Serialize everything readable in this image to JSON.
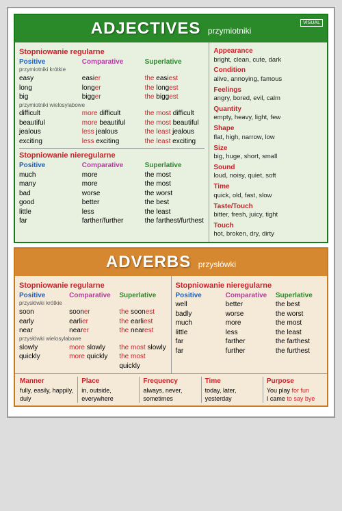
{
  "adjectives": {
    "title": "ADJECTIVES",
    "subtitle": "przymiotniki",
    "brand": "VISUAL",
    "regular_heading": "Stopniowanie regularne",
    "irregular_heading": "Stopniowanie nieregularne",
    "cols": {
      "positive": "Positive",
      "comparative": "Comparative",
      "superlative": "Superlative"
    },
    "sub_short": "przymiotniki krótkie",
    "sub_long": "przymiotniki wielosylabowe",
    "short_rows": [
      {
        "p": "easy",
        "c_pre": "easi",
        "c_suf": "er",
        "s_pre": "the ",
        "s_mid": "easi",
        "s_suf": "est"
      },
      {
        "p": "long",
        "c_pre": "long",
        "c_suf": "er",
        "s_pre": "the ",
        "s_mid": "long",
        "s_suf": "est"
      },
      {
        "p": "big",
        "c_pre": "bigg",
        "c_suf": "er",
        "s_pre": "the ",
        "s_mid": "bigg",
        "s_suf": "est"
      }
    ],
    "long_rows": [
      {
        "p": "difficult",
        "c_w": "more",
        "c_rest": " difficult",
        "s_w": "the most",
        "s_rest": " difficult"
      },
      {
        "p": "beautiful",
        "c_w": "more",
        "c_rest": " beautiful",
        "s_w": "the most",
        "s_rest": " beautiful"
      },
      {
        "p": "jealous",
        "c_w": "less",
        "c_rest": " jealous",
        "s_w": "the least",
        "s_rest": " jealous"
      },
      {
        "p": "exciting",
        "c_w": "less",
        "c_rest": " exciting",
        "s_w": "the least",
        "s_rest": " exciting"
      }
    ],
    "irregular_rows": [
      {
        "p": "much",
        "c": "more",
        "s": "the most"
      },
      {
        "p": "many",
        "c": "more",
        "s": "the most"
      },
      {
        "p": "bad",
        "c": "worse",
        "s": "the worst"
      },
      {
        "p": "good",
        "c": "better",
        "s": "the best"
      },
      {
        "p": "little",
        "c": "less",
        "s": "the least"
      },
      {
        "p": "far",
        "c": "farther/further",
        "s": "the farthest/furthest"
      }
    ],
    "categories": [
      {
        "name": "Appearance",
        "words": "bright, clean, cute, dark"
      },
      {
        "name": "Condition",
        "words": "alive, annoying, famous"
      },
      {
        "name": "Feelings",
        "words": "angry, bored, evil, calm"
      },
      {
        "name": "Quantity",
        "words": "empty, heavy, light, few"
      },
      {
        "name": "Shape",
        "words": "flat, high, narrow, low"
      },
      {
        "name": "Size",
        "words": "big, huge, short, small"
      },
      {
        "name": "Sound",
        "words": "loud, noisy, quiet, soft"
      },
      {
        "name": "Time",
        "words": "quick, old, fast, slow"
      },
      {
        "name": "Taste/Touch",
        "words": "bitter, fresh, juicy, tight"
      },
      {
        "name": "Touch",
        "words": "hot, broken, dry, dirty"
      }
    ]
  },
  "adverbs": {
    "title": "ADVERBS",
    "subtitle": "przysłówki",
    "regular_heading": "Stopniowanie regularne",
    "irregular_heading": "Stopniowanie nieregularne",
    "cols": {
      "positive": "Positive",
      "comparative": "Comparative",
      "superlative": "Superlative"
    },
    "sub_short": "przysłówki krótkie",
    "sub_long": "przysłówki wielosylabowe",
    "reg_short": [
      {
        "p": "soon",
        "c_pre": "soon",
        "c_suf": "er",
        "s_pre": "the ",
        "s_mid": "soon",
        "s_suf": "est"
      },
      {
        "p": "early",
        "c_pre": "earli",
        "c_suf": "er",
        "s_pre": "the ",
        "s_mid": "earli",
        "s_suf": "est"
      },
      {
        "p": "near",
        "c_pre": "near",
        "c_suf": "er",
        "s_pre": "the ",
        "s_mid": "near",
        "s_suf": "est"
      }
    ],
    "reg_long": [
      {
        "p": "slowly",
        "c_w": "more",
        "c_rest": " slowly",
        "s_w": "the most",
        "s_rest": " slowly"
      },
      {
        "p": "quickly",
        "c_w": "more",
        "c_rest": " quickly",
        "s_w": "the most",
        "s_rest": " quickly"
      }
    ],
    "irreg": [
      {
        "p": "well",
        "c": "better",
        "s": "the best"
      },
      {
        "p": "badly",
        "c": "worse",
        "s": "the worst"
      },
      {
        "p": "much",
        "c": "more",
        "s": "the most"
      },
      {
        "p": "little",
        "c": "less",
        "s": "the least"
      },
      {
        "p": "far",
        "c": "farther",
        "s": "the farthest"
      },
      {
        "p": "far",
        "c": "further",
        "s": "the furthest"
      }
    ],
    "bottom": [
      {
        "name": "Manner",
        "words": "fully, easily, happily, duly"
      },
      {
        "name": "Place",
        "words": "in, outside, everywhere"
      },
      {
        "name": "Frequency",
        "words": "always, never, sometimes"
      },
      {
        "name": "Time",
        "words": "today, later, yesterday"
      },
      {
        "name": "Purpose",
        "l1a": "You play ",
        "l1b": "for fun",
        "l2a": "I came ",
        "l2b": "to say bye"
      }
    ]
  }
}
